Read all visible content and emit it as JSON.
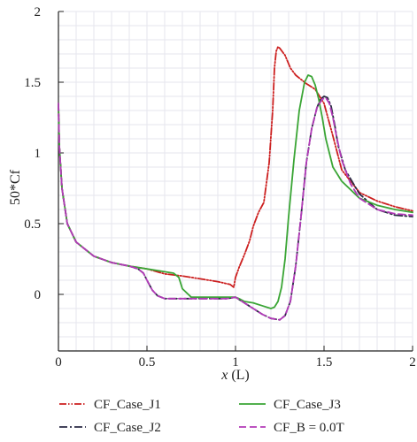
{
  "chart_data": {
    "type": "line",
    "xlabel": "x (L)",
    "xlabel_main": "x",
    "xlabel_unit": "(L)",
    "ylabel": "50*Cf",
    "xlim": [
      0,
      2
    ],
    "ylim": [
      -0.4,
      2
    ],
    "xticks": [
      0,
      0.5,
      1,
      1.5,
      2
    ],
    "xtick_labels": [
      "0",
      "0.5",
      "1",
      "1.5",
      "2"
    ],
    "yticks": [
      0,
      0.5,
      1,
      1.5,
      2
    ],
    "ytick_labels": [
      "0",
      "0.5",
      "1",
      "1.5",
      "2"
    ],
    "grid": true,
    "legend_position": "bottom",
    "series": [
      {
        "name": "CF_Case_J1",
        "color": "#cc1f1f",
        "dash": "dash-dot-dot",
        "x": [
          0.0,
          0.005,
          0.02,
          0.05,
          0.1,
          0.2,
          0.3,
          0.4,
          0.5,
          0.6,
          0.7,
          0.8,
          0.9,
          0.97,
          0.99,
          1.0,
          1.02,
          1.05,
          1.08,
          1.1,
          1.13,
          1.16,
          1.19,
          1.21,
          1.22,
          1.23,
          1.24,
          1.25,
          1.28,
          1.31,
          1.34,
          1.37,
          1.4,
          1.45,
          1.5,
          1.55,
          1.6,
          1.7,
          1.8,
          1.9,
          2.0
        ],
        "y": [
          1.35,
          1.05,
          0.75,
          0.5,
          0.37,
          0.27,
          0.225,
          0.2,
          0.18,
          0.145,
          0.13,
          0.11,
          0.09,
          0.07,
          0.05,
          0.12,
          0.19,
          0.28,
          0.38,
          0.48,
          0.58,
          0.65,
          0.93,
          1.3,
          1.6,
          1.72,
          1.75,
          1.74,
          1.69,
          1.6,
          1.55,
          1.52,
          1.49,
          1.45,
          1.35,
          1.12,
          0.88,
          0.72,
          0.66,
          0.62,
          0.59
        ]
      },
      {
        "name": "CF_Case_J2",
        "color": "#2a2a44",
        "dash": "dash-dot",
        "x": [
          0.0,
          0.005,
          0.02,
          0.05,
          0.1,
          0.2,
          0.3,
          0.4,
          0.45,
          0.48,
          0.5,
          0.53,
          0.56,
          0.6,
          0.7,
          0.8,
          0.9,
          0.95,
          1.0,
          1.05,
          1.1,
          1.15,
          1.2,
          1.25,
          1.28,
          1.31,
          1.34,
          1.37,
          1.4,
          1.43,
          1.46,
          1.48,
          1.5,
          1.52,
          1.54,
          1.56,
          1.58,
          1.62,
          1.7,
          1.8,
          1.9,
          2.0
        ],
        "y": [
          1.35,
          1.05,
          0.75,
          0.5,
          0.37,
          0.27,
          0.225,
          0.2,
          0.18,
          0.15,
          0.1,
          0.03,
          -0.01,
          -0.03,
          -0.03,
          -0.03,
          -0.03,
          -0.03,
          -0.02,
          -0.06,
          -0.1,
          -0.14,
          -0.17,
          -0.18,
          -0.15,
          -0.05,
          0.2,
          0.55,
          0.93,
          1.17,
          1.32,
          1.38,
          1.4,
          1.39,
          1.33,
          1.2,
          1.05,
          0.88,
          0.71,
          0.6,
          0.56,
          0.55
        ]
      },
      {
        "name": "CF_Case_J3",
        "color": "#3aa535",
        "dash": "solid",
        "x": [
          0.0,
          0.005,
          0.02,
          0.05,
          0.1,
          0.2,
          0.3,
          0.4,
          0.5,
          0.6,
          0.65,
          0.68,
          0.7,
          0.75,
          0.8,
          0.9,
          1.0,
          1.02,
          1.05,
          1.1,
          1.15,
          1.2,
          1.22,
          1.24,
          1.26,
          1.28,
          1.3,
          1.33,
          1.36,
          1.39,
          1.41,
          1.43,
          1.45,
          1.47,
          1.49,
          1.51,
          1.55,
          1.6,
          1.7,
          1.8,
          1.9,
          2.0
        ],
        "y": [
          1.35,
          1.05,
          0.75,
          0.5,
          0.37,
          0.27,
          0.225,
          0.2,
          0.18,
          0.16,
          0.15,
          0.12,
          0.04,
          -0.02,
          -0.02,
          -0.02,
          -0.02,
          -0.03,
          -0.05,
          -0.06,
          -0.08,
          -0.1,
          -0.09,
          -0.05,
          0.05,
          0.25,
          0.55,
          0.95,
          1.3,
          1.5,
          1.55,
          1.54,
          1.48,
          1.38,
          1.25,
          1.1,
          0.9,
          0.8,
          0.68,
          0.63,
          0.6,
          0.58
        ]
      },
      {
        "name": "CF_B = 0.0T",
        "color": "#b23ab8",
        "dash": "dashed",
        "x": [
          0.0,
          0.005,
          0.02,
          0.05,
          0.1,
          0.2,
          0.3,
          0.4,
          0.45,
          0.48,
          0.5,
          0.53,
          0.56,
          0.6,
          0.7,
          0.8,
          0.9,
          0.95,
          1.0,
          1.05,
          1.1,
          1.15,
          1.2,
          1.25,
          1.28,
          1.31,
          1.34,
          1.37,
          1.4,
          1.43,
          1.46,
          1.49,
          1.51,
          1.53,
          1.55,
          1.57,
          1.6,
          1.65,
          1.7,
          1.8,
          1.9,
          2.0
        ],
        "y": [
          1.35,
          1.05,
          0.75,
          0.5,
          0.37,
          0.27,
          0.225,
          0.2,
          0.18,
          0.15,
          0.1,
          0.03,
          -0.01,
          -0.03,
          -0.03,
          -0.03,
          -0.03,
          -0.03,
          -0.02,
          -0.06,
          -0.1,
          -0.14,
          -0.17,
          -0.18,
          -0.15,
          -0.05,
          0.2,
          0.55,
          0.93,
          1.17,
          1.32,
          1.38,
          1.39,
          1.35,
          1.25,
          1.12,
          0.95,
          0.78,
          0.68,
          0.6,
          0.57,
          0.56
        ]
      }
    ]
  }
}
